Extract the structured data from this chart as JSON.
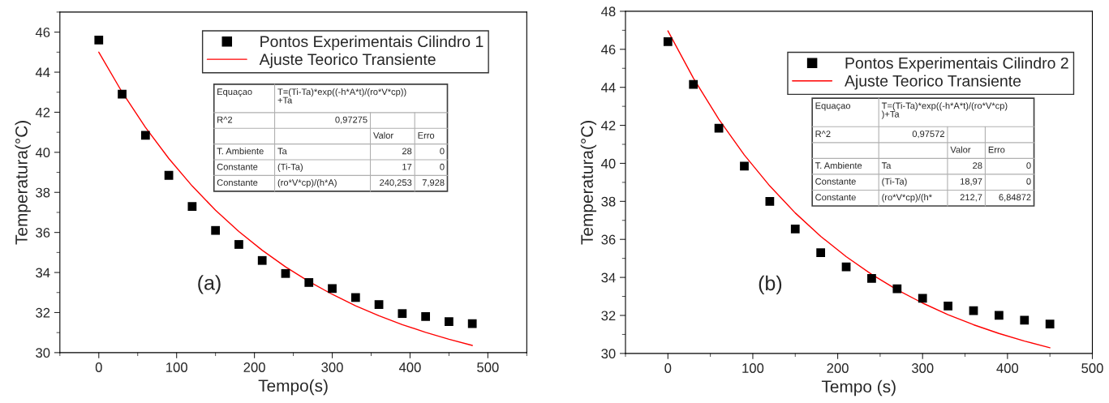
{
  "chart_data": [
    {
      "type": "scatter",
      "xlabel": "Tempo(s)",
      "ylabel": "Temperatura(°C)",
      "xlim": [
        -50,
        550
      ],
      "ylim": [
        30,
        47
      ],
      "xticks": [
        0,
        100,
        200,
        300,
        400,
        500
      ],
      "yticks": [
        30,
        32,
        34,
        36,
        38,
        40,
        42,
        44,
        46
      ],
      "legend": "top right",
      "x": [
        0,
        30,
        60,
        90,
        120,
        150,
        180,
        210,
        240,
        270,
        300,
        330,
        360,
        390,
        420,
        450,
        480
      ],
      "series": [
        {
          "name": "Pontos Experimentais Cilindro 1",
          "color": "#000000",
          "marker": "square",
          "values": [
            45.6,
            42.9,
            40.85,
            38.85,
            37.3,
            36.1,
            35.4,
            34.6,
            33.95,
            33.5,
            33.2,
            32.75,
            32.4,
            31.95,
            31.8,
            31.55,
            31.45
          ]
        },
        {
          "name": "Ajuste Teorico Transiente",
          "type": "line",
          "color": "#ff0000",
          "x": [
            0,
            30,
            60,
            90,
            120,
            150,
            180,
            210,
            240,
            270,
            300,
            330,
            360,
            390,
            420,
            450,
            480
          ],
          "values": [
            45.0,
            43.0,
            41.24,
            39.69,
            38.32,
            37.11,
            36.05,
            35.11,
            34.28,
            33.55,
            32.91,
            32.34,
            31.84,
            31.4,
            31.01,
            30.67,
            30.36
          ]
        }
      ],
      "annotations": [
        "(a)",
        "Equaçao",
        "T=(Ti-Ta)*exp((-h*A*t)/(ro*V*cp))\n+Ta",
        "R^2",
        "0,97275",
        "Valor",
        "Erro",
        "T. Ambiente",
        "Ta",
        "28",
        "0",
        "Constante",
        "(Ti-Ta)",
        "17",
        "0",
        "Constante",
        "(ro*V*cp)/(h*A)",
        "240,253",
        "7,928"
      ]
    },
    {
      "type": "scatter",
      "xlabel": "Tempo (s)",
      "ylabel": "Temperatura(°C)",
      "xlim": [
        -50,
        500
      ],
      "ylim": [
        30,
        48
      ],
      "xticks": [
        0,
        100,
        200,
        300,
        400,
        500
      ],
      "yticks": [
        30,
        32,
        34,
        36,
        38,
        40,
        42,
        44,
        46,
        48
      ],
      "legend": "top right",
      "x": [
        0,
        30,
        60,
        90,
        120,
        150,
        180,
        210,
        240,
        270,
        300,
        330,
        360,
        390,
        420,
        450
      ],
      "series": [
        {
          "name": "Pontos Experimentais Cilindro 2",
          "color": "#000000",
          "marker": "square",
          "values": [
            46.4,
            44.15,
            41.85,
            39.85,
            38.0,
            36.55,
            35.3,
            34.55,
            33.95,
            33.4,
            32.9,
            32.5,
            32.25,
            32.0,
            31.75,
            31.55
          ]
        },
        {
          "name": "Ajuste Teorico Transiente",
          "type": "line",
          "color": "#ff0000",
          "x": [
            0,
            30,
            60,
            90,
            120,
            150,
            180,
            210,
            240,
            270,
            300,
            330,
            360,
            390,
            420,
            450
          ],
          "values": [
            46.97,
            44.48,
            42.32,
            40.44,
            38.81,
            37.39,
            36.16,
            35.09,
            34.16,
            33.35,
            32.65,
            32.04,
            31.51,
            31.05,
            30.65,
            30.3
          ]
        }
      ],
      "annotations": [
        "(b)",
        "Equaçao",
        "T=(Ti-Ta)*exp((-h*A*t)/(ro*V*cp)\n)+Ta",
        "R^2",
        "0,97572",
        "Valor",
        "Erro",
        "T. Ambiente",
        "Ta",
        "28",
        "0",
        "Constante",
        "(Ti-Ta)",
        "18,97",
        "0",
        "Constante",
        "(ro*V*cp)/(h*",
        "212,7",
        "6,84872"
      ]
    }
  ]
}
